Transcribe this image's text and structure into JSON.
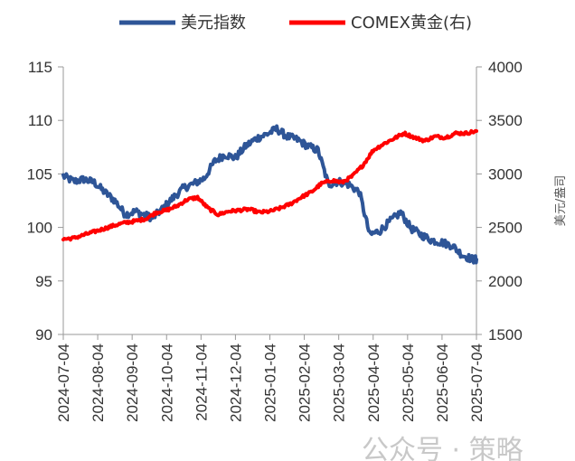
{
  "chart_data": {
    "type": "line",
    "title": "",
    "x_tick_labels": [
      "2024-07-04",
      "2024-08-04",
      "2024-09-04",
      "2024-10-04",
      "2024-11-04",
      "2024-12-04",
      "2025-01-04",
      "2025-02-04",
      "2025-03-04",
      "2025-04-04",
      "2025-05-04",
      "2025-06-04",
      "2025-07-04"
    ],
    "y_left": {
      "label": "",
      "lim": [
        90,
        115
      ],
      "ticks": [
        90,
        95,
        100,
        105,
        110,
        115
      ]
    },
    "y_right": {
      "label": "美元/盎司",
      "lim": [
        1500,
        4000
      ],
      "ticks": [
        1500,
        2000,
        2500,
        3000,
        3500,
        4000
      ]
    },
    "legend_position": "top",
    "series": [
      {
        "name": "美元指数",
        "axis": "left",
        "color": "#2e5597",
        "x": [
          0,
          0.3,
          0.6,
          0.9,
          1.2,
          1.5,
          1.8,
          2.1,
          2.4,
          2.6,
          2.9,
          3.2,
          3.5,
          3.8,
          4.1,
          4.4,
          4.7,
          5.0,
          5.3,
          5.6,
          5.9,
          6.2,
          6.5,
          6.8,
          7.1,
          7.4,
          7.7,
          8.0,
          8.3,
          8.6,
          8.9,
          9.2,
          9.5,
          9.8,
          10.1,
          10.4,
          10.7,
          11.0,
          11.3,
          11.6,
          11.9,
          12.0
        ],
        "values": [
          104.8,
          104.3,
          104.5,
          104.2,
          103.3,
          102.5,
          101.2,
          101.5,
          101.1,
          100.9,
          101.8,
          102.8,
          103.7,
          104.1,
          104.6,
          106.2,
          106.8,
          106.5,
          107.6,
          108.3,
          108.7,
          109.2,
          108.5,
          108.2,
          107.6,
          107.2,
          104.0,
          104.3,
          104.0,
          103.3,
          99.3,
          99.7,
          100.6,
          101.4,
          99.9,
          99.3,
          98.8,
          98.6,
          98.3,
          97.4,
          97.0,
          97.0
        ],
        "end_label": ""
      },
      {
        "name": "COMEX黄金(右)",
        "axis": "right",
        "color": "#ff0000",
        "x": [
          0,
          0.3,
          0.6,
          0.9,
          1.2,
          1.5,
          1.8,
          2.1,
          2.4,
          2.7,
          3.0,
          3.3,
          3.6,
          3.9,
          4.2,
          4.5,
          4.8,
          5.1,
          5.4,
          5.7,
          6.0,
          6.3,
          6.6,
          6.9,
          7.2,
          7.5,
          7.8,
          8.1,
          8.4,
          8.7,
          9.0,
          9.3,
          9.6,
          9.9,
          10.2,
          10.5,
          10.8,
          11.1,
          11.4,
          11.7,
          12.0
        ],
        "values": [
          2390,
          2400,
          2430,
          2460,
          2490,
          2520,
          2545,
          2560,
          2580,
          2640,
          2660,
          2700,
          2760,
          2780,
          2680,
          2620,
          2650,
          2660,
          2670,
          2640,
          2650,
          2680,
          2720,
          2780,
          2830,
          2910,
          2940,
          2920,
          2980,
          3080,
          3220,
          3280,
          3330,
          3380,
          3340,
          3310,
          3350,
          3340,
          3380,
          3380,
          3400
        ],
        "end_label": ""
      }
    ]
  },
  "watermark": "公众号 · 策略"
}
